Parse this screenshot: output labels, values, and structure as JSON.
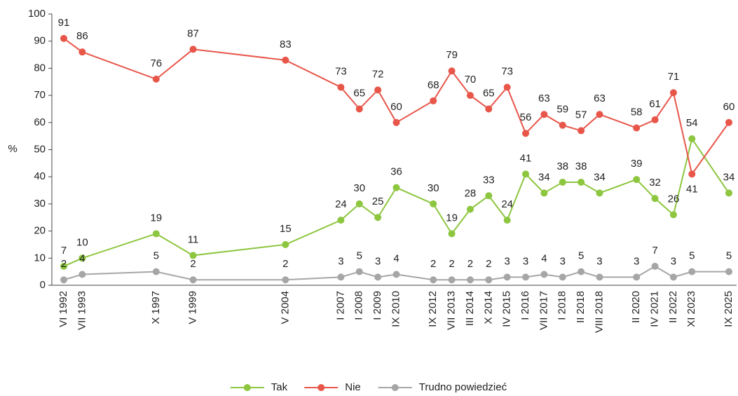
{
  "chart_data": {
    "type": "line",
    "categories": [
      "VI 1992",
      "VII 1993",
      null,
      null,
      null,
      "X 1997",
      null,
      "V 1999",
      null,
      null,
      null,
      null,
      "V 2004",
      null,
      null,
      "I 2007",
      "I 2008",
      "I 2009",
      "IX 2010",
      null,
      "IX 2012",
      "VII 2013",
      "III 2014",
      "X 2014",
      "IV 2015",
      "I 2016",
      "VII 2017",
      "I 2018",
      "II 2018",
      "VIII 2018",
      null,
      "II 2020",
      "IV 2021",
      "II 2022",
      "XI 2023",
      null,
      "IX 2025"
    ],
    "series": [
      {
        "name": "Tak",
        "color": "#8dc63f",
        "values": [
          7,
          10,
          null,
          null,
          null,
          19,
          null,
          11,
          null,
          null,
          null,
          null,
          15,
          null,
          null,
          24,
          30,
          25,
          36,
          null,
          30,
          19,
          28,
          33,
          24,
          41,
          34,
          38,
          38,
          34,
          null,
          39,
          32,
          26,
          54,
          null,
          34
        ]
      },
      {
        "name": "Nie",
        "color": "#e8564a",
        "values": [
          91,
          86,
          null,
          null,
          null,
          76,
          null,
          87,
          null,
          null,
          null,
          null,
          83,
          null,
          null,
          73,
          65,
          72,
          60,
          null,
          68,
          79,
          70,
          65,
          73,
          56,
          63,
          59,
          57,
          63,
          null,
          58,
          61,
          71,
          41,
          null,
          60
        ]
      },
      {
        "name": "Trudno powiedzieć",
        "color": "#a6a6a6",
        "values": [
          2,
          4,
          null,
          null,
          null,
          5,
          null,
          2,
          null,
          null,
          null,
          null,
          2,
          null,
          null,
          3,
          5,
          3,
          4,
          null,
          2,
          2,
          2,
          2,
          3,
          3,
          4,
          3,
          5,
          3,
          null,
          3,
          7,
          3,
          5,
          null,
          5
        ]
      }
    ],
    "y_label": "%",
    "ylim": [
      0,
      100
    ],
    "yticks": [
      0,
      10,
      20,
      30,
      40,
      50,
      60,
      70,
      80,
      90,
      100
    ],
    "connect_nulls": true,
    "legend": "bottom",
    "data_labels": true
  }
}
